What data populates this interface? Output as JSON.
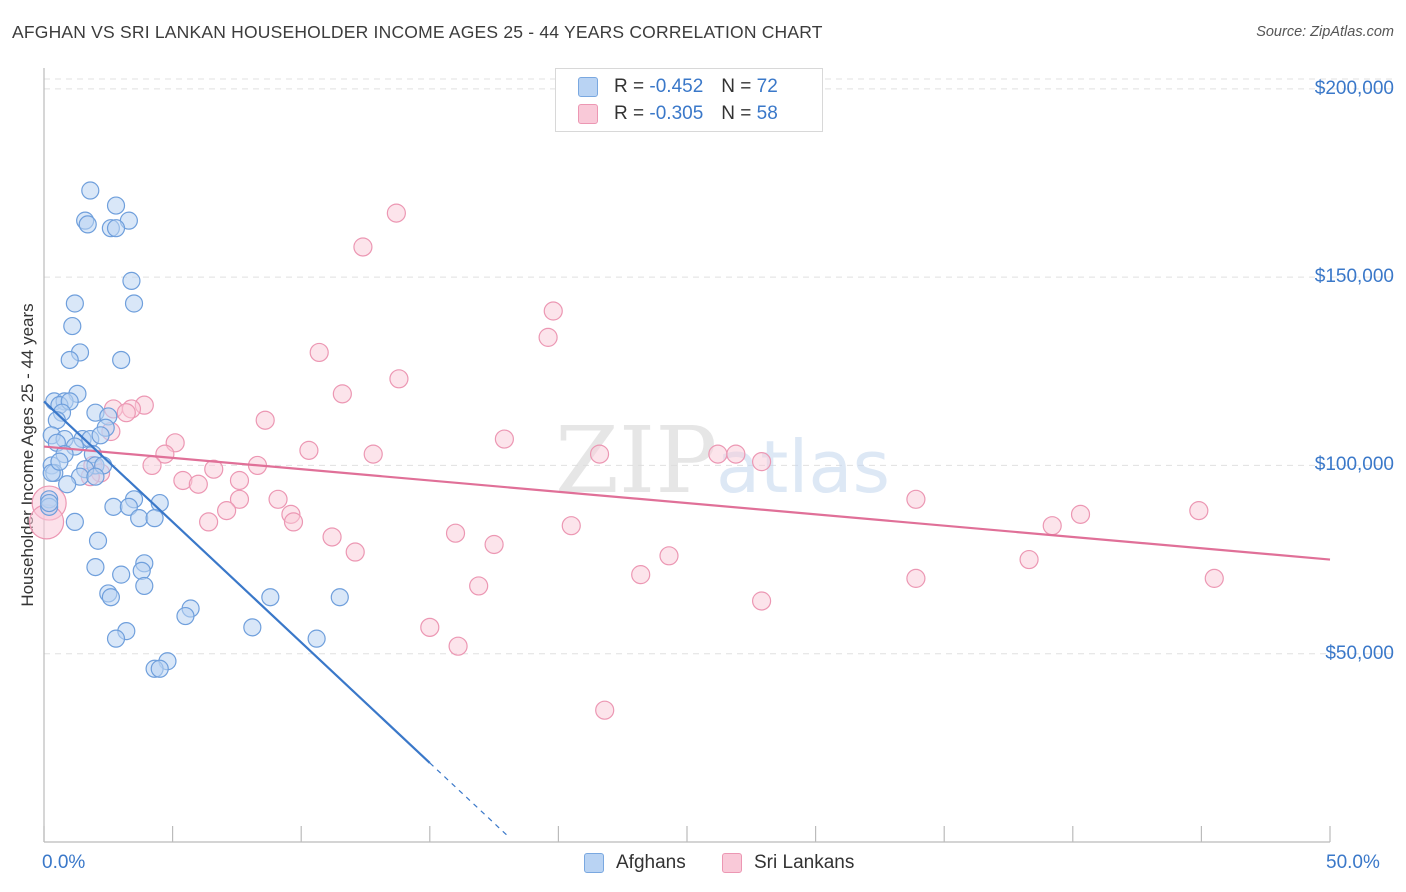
{
  "header": {
    "title": "AFGHAN VS SRI LANKAN HOUSEHOLDER INCOME AGES 25 - 44 YEARS CORRELATION CHART",
    "source": "Source: ZipAtlas.com"
  },
  "colors": {
    "afghan": "#3a78c9",
    "afghan_fill": "#b9d3f3",
    "srilankan": "#e07098",
    "srilankan_fill": "#f9c9d8",
    "grid": "#e0e0e0",
    "tick_label": "#3a78c9"
  },
  "legend": {
    "r_label": "R =",
    "n_label": "N =",
    "afghan": {
      "r": "-0.452",
      "n": "72"
    },
    "srilankan": {
      "r": "-0.305",
      "n": "58"
    }
  },
  "bottom_legend": {
    "afghan": "Afghans",
    "srilankan": "Sri Lankans"
  },
  "chart_data": {
    "type": "scatter",
    "title": "AFGHAN VS SRI LANKAN HOUSEHOLDER INCOME AGES 25 - 44 YEARS CORRELATION CHART",
    "ylabel": "Householder Income Ages 25 - 44 years",
    "xlabel": "",
    "xlim": [
      0,
      50
    ],
    "ylim": [
      0,
      205000
    ],
    "x_tick_labels": [
      "0.0%",
      "50.0%"
    ],
    "y_ticks": [
      50000,
      100000,
      150000,
      200000
    ],
    "y_tick_labels": [
      "$50,000",
      "$100,000",
      "$150,000",
      "$200,000"
    ],
    "grid": true,
    "legend_position": "top-center",
    "series": [
      {
        "name": "Afghans",
        "r": -0.452,
        "n": 72,
        "trend": {
          "x0": 0,
          "y0": 117000,
          "x1": 15,
          "y1": 21000,
          "dashed_to_x": 18
        },
        "points": [
          [
            1.8,
            173000
          ],
          [
            2.8,
            169000
          ],
          [
            1.6,
            165000
          ],
          [
            1.7,
            164000
          ],
          [
            3.3,
            165000
          ],
          [
            2.6,
            163000
          ],
          [
            2.8,
            163000
          ],
          [
            3.4,
            149000
          ],
          [
            1.2,
            143000
          ],
          [
            3.5,
            143000
          ],
          [
            1.1,
            137000
          ],
          [
            1.4,
            130000
          ],
          [
            3.0,
            128000
          ],
          [
            1.0,
            128000
          ],
          [
            1.3,
            119000
          ],
          [
            0.4,
            117000
          ],
          [
            0.8,
            117000
          ],
          [
            0.6,
            116000
          ],
          [
            1.0,
            117000
          ],
          [
            2.0,
            114000
          ],
          [
            2.5,
            113000
          ],
          [
            0.7,
            114000
          ],
          [
            0.5,
            112000
          ],
          [
            2.4,
            110000
          ],
          [
            1.5,
            107000
          ],
          [
            0.3,
            108000
          ],
          [
            0.8,
            107000
          ],
          [
            1.8,
            107000
          ],
          [
            0.5,
            106000
          ],
          [
            2.2,
            108000
          ],
          [
            1.2,
            105000
          ],
          [
            1.9,
            103000
          ],
          [
            0.8,
            103000
          ],
          [
            0.3,
            100000
          ],
          [
            2.0,
            100000
          ],
          [
            2.3,
            100000
          ],
          [
            1.6,
            99000
          ],
          [
            0.4,
            98000
          ],
          [
            1.4,
            97000
          ],
          [
            2.0,
            97000
          ],
          [
            0.9,
            95000
          ],
          [
            0.2,
            91000
          ],
          [
            3.5,
            91000
          ],
          [
            0.2,
            89000
          ],
          [
            4.5,
            90000
          ],
          [
            2.7,
            89000
          ],
          [
            3.3,
            89000
          ],
          [
            1.2,
            85000
          ],
          [
            3.7,
            86000
          ],
          [
            4.3,
            86000
          ],
          [
            2.1,
            80000
          ],
          [
            3.9,
            74000
          ],
          [
            2.0,
            73000
          ],
          [
            3.0,
            71000
          ],
          [
            3.8,
            72000
          ],
          [
            3.9,
            68000
          ],
          [
            2.5,
            66000
          ],
          [
            2.6,
            65000
          ],
          [
            8.8,
            65000
          ],
          [
            11.5,
            65000
          ],
          [
            5.7,
            62000
          ],
          [
            5.5,
            60000
          ],
          [
            3.2,
            56000
          ],
          [
            8.1,
            57000
          ],
          [
            10.6,
            54000
          ],
          [
            2.8,
            54000
          ],
          [
            4.8,
            48000
          ],
          [
            4.3,
            46000
          ],
          [
            4.5,
            46000
          ],
          [
            0.2,
            90000
          ],
          [
            0.3,
            98000
          ],
          [
            0.6,
            101000
          ]
        ]
      },
      {
        "name": "Sri Lankans",
        "r": -0.305,
        "n": 58,
        "trend": {
          "x0": 0,
          "y0": 105000,
          "x1": 50,
          "y1": 75000
        },
        "points": [
          [
            13.7,
            167000
          ],
          [
            12.4,
            158000
          ],
          [
            19.8,
            141000
          ],
          [
            19.6,
            134000
          ],
          [
            10.7,
            130000
          ],
          [
            13.8,
            123000
          ],
          [
            11.6,
            119000
          ],
          [
            3.9,
            116000
          ],
          [
            2.7,
            115000
          ],
          [
            3.4,
            115000
          ],
          [
            3.2,
            114000
          ],
          [
            8.6,
            112000
          ],
          [
            2.6,
            109000
          ],
          [
            5.1,
            106000
          ],
          [
            17.9,
            107000
          ],
          [
            10.3,
            104000
          ],
          [
            12.8,
            103000
          ],
          [
            4.7,
            103000
          ],
          [
            21.6,
            103000
          ],
          [
            26.2,
            103000
          ],
          [
            26.9,
            103000
          ],
          [
            27.9,
            101000
          ],
          [
            4.2,
            100000
          ],
          [
            8.3,
            100000
          ],
          [
            1.9,
            100000
          ],
          [
            6.6,
            99000
          ],
          [
            2.2,
            98000
          ],
          [
            1.8,
            97000
          ],
          [
            5.4,
            96000
          ],
          [
            7.6,
            96000
          ],
          [
            6.0,
            95000
          ],
          [
            9.1,
            91000
          ],
          [
            7.6,
            91000
          ],
          [
            33.9,
            91000
          ],
          [
            7.1,
            88000
          ],
          [
            9.6,
            87000
          ],
          [
            44.9,
            88000
          ],
          [
            40.3,
            87000
          ],
          [
            6.4,
            85000
          ],
          [
            9.7,
            85000
          ],
          [
            39.2,
            84000
          ],
          [
            20.5,
            84000
          ],
          [
            16.0,
            82000
          ],
          [
            11.2,
            81000
          ],
          [
            17.5,
            79000
          ],
          [
            12.1,
            77000
          ],
          [
            24.3,
            76000
          ],
          [
            38.3,
            75000
          ],
          [
            23.2,
            71000
          ],
          [
            33.9,
            70000
          ],
          [
            45.5,
            70000
          ],
          [
            16.9,
            68000
          ],
          [
            27.9,
            64000
          ],
          [
            15.0,
            57000
          ],
          [
            16.1,
            52000
          ],
          [
            21.8,
            35000
          ],
          [
            0.2,
            90000
          ],
          [
            0.1,
            85000
          ]
        ]
      }
    ]
  }
}
